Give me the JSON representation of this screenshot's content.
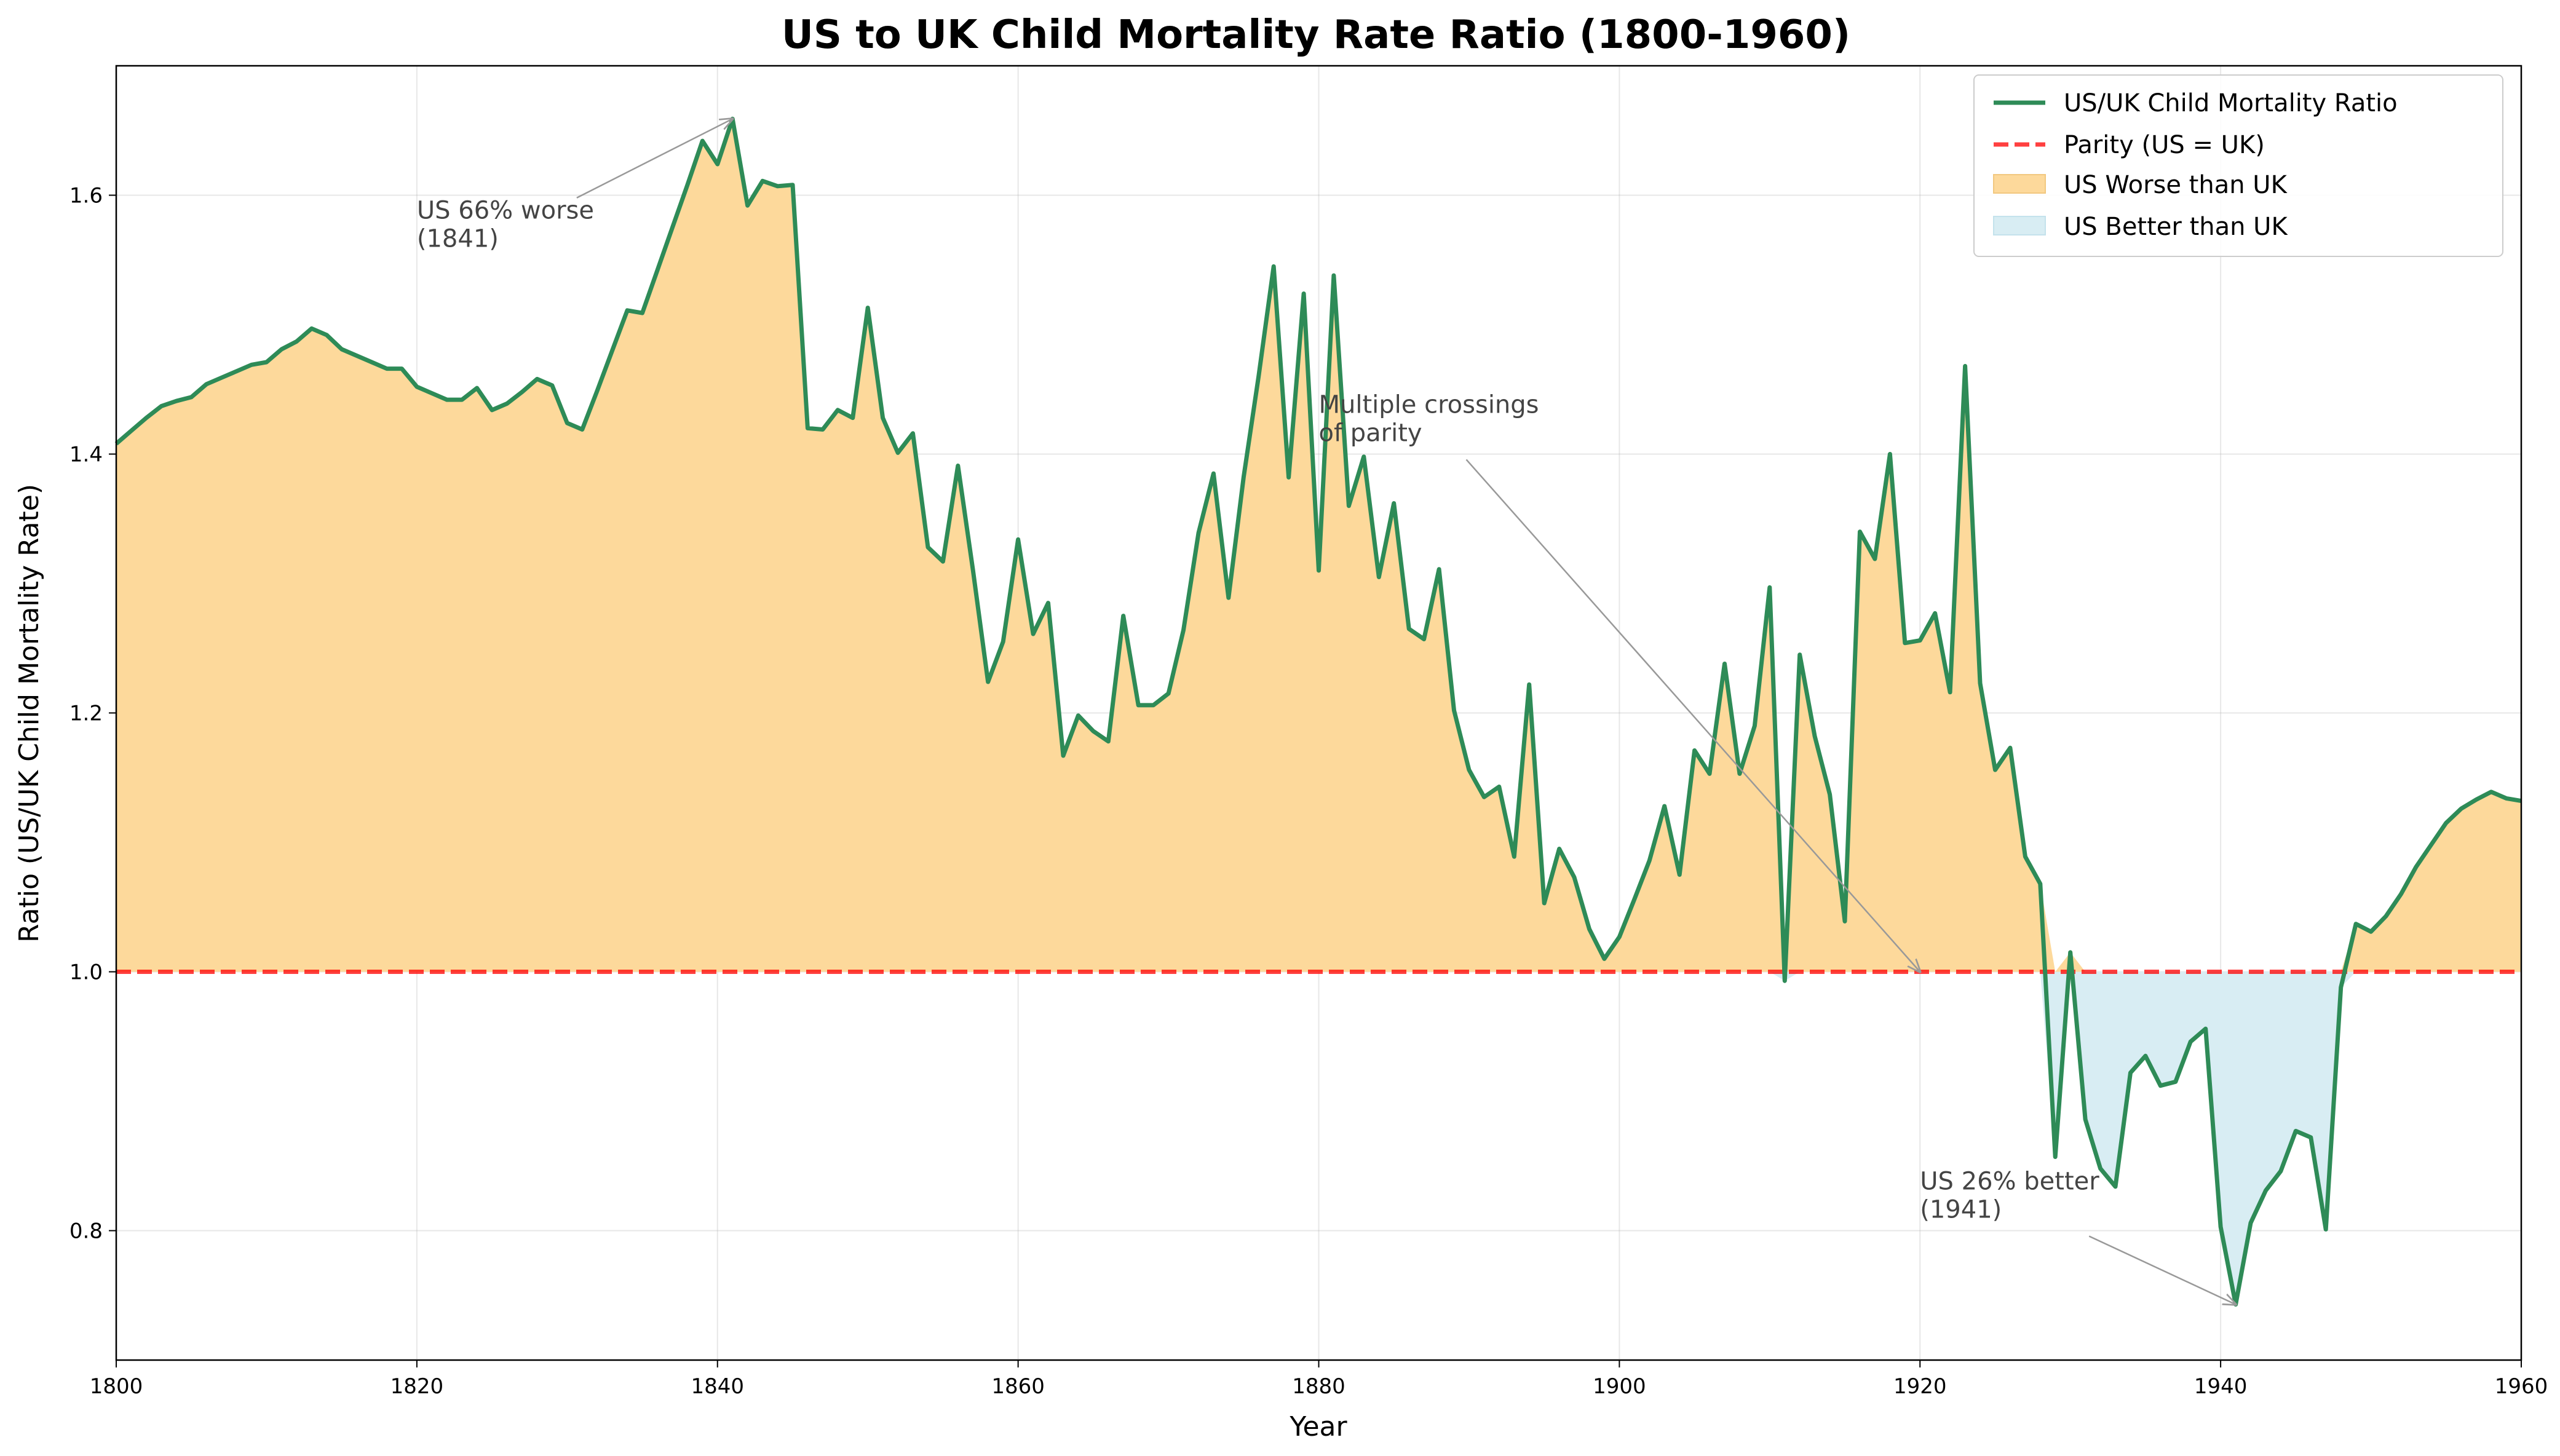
{
  "chart_data": {
    "type": "line",
    "title": "US to UK Child Mortality Rate Ratio (1800-1960)",
    "xlabel": "Year",
    "ylabel": "Ratio (US/UK Child Mortality Rate)",
    "xlim": [
      1800,
      1960
    ],
    "ylim": [
      0.7,
      1.7
    ],
    "xticks": [
      1800,
      1820,
      1840,
      1860,
      1880,
      1900,
      1920,
      1940,
      1960
    ],
    "yticks": [
      0.8,
      1.0,
      1.2,
      1.4,
      1.6
    ],
    "ytick_labels": [
      "0.8",
      "1.0",
      "1.2",
      "1.4",
      "1.6"
    ],
    "grid": true,
    "legend_position": "top-right",
    "series": [
      {
        "name": "US/UK Child Mortality Ratio",
        "color": "#2e8b57",
        "x": [
          1800,
          1801,
          1802,
          1803,
          1804,
          1805,
          1806,
          1807,
          1808,
          1809,
          1810,
          1811,
          1812,
          1813,
          1814,
          1815,
          1816,
          1817,
          1818,
          1819,
          1820,
          1821,
          1822,
          1823,
          1824,
          1825,
          1826,
          1827,
          1828,
          1829,
          1830,
          1831,
          1832,
          1833,
          1834,
          1835,
          1836,
          1837,
          1838,
          1839,
          1840,
          1841,
          1842,
          1843,
          1844,
          1845,
          1846,
          1847,
          1848,
          1849,
          1850,
          1851,
          1852,
          1853,
          1854,
          1855,
          1856,
          1857,
          1858,
          1859,
          1860,
          1861,
          1862,
          1863,
          1864,
          1865,
          1866,
          1867,
          1868,
          1869,
          1870,
          1871,
          1872,
          1873,
          1874,
          1875,
          1876,
          1877,
          1878,
          1879,
          1880,
          1881,
          1882,
          1883,
          1884,
          1885,
          1886,
          1887,
          1888,
          1889,
          1890,
          1891,
          1892,
          1893,
          1894,
          1895,
          1896,
          1897,
          1898,
          1899,
          1900,
          1901,
          1902,
          1903,
          1904,
          1905,
          1906,
          1907,
          1908,
          1909,
          1910,
          1911,
          1912,
          1913,
          1914,
          1915,
          1916,
          1917,
          1918,
          1919,
          1920,
          1921,
          1922,
          1923,
          1924,
          1925,
          1926,
          1927,
          1928,
          1929,
          1930,
          1931,
          1932,
          1933,
          1934,
          1935,
          1936,
          1937,
          1938,
          1939,
          1940,
          1941,
          1942,
          1943,
          1944,
          1945,
          1946,
          1947,
          1948,
          1949,
          1950,
          1951,
          1952,
          1953,
          1954,
          1955,
          1956,
          1957,
          1958,
          1959,
          1960
        ],
        "y": [
          1.408,
          1.418,
          1.428,
          1.437,
          1.441,
          1.444,
          1.454,
          1.459,
          1.464,
          1.469,
          1.471,
          1.481,
          1.487,
          1.497,
          1.492,
          1.481,
          1.476,
          1.471,
          1.466,
          1.466,
          1.452,
          1.447,
          1.442,
          1.442,
          1.451,
          1.434,
          1.439,
          1.448,
          1.458,
          1.453,
          1.424,
          1.419,
          1.449,
          1.48,
          1.511,
          1.509,
          1.542,
          1.575,
          1.608,
          1.642,
          1.624,
          1.659,
          1.592,
          1.611,
          1.607,
          1.608,
          1.42,
          1.419,
          1.434,
          1.428,
          1.513,
          1.428,
          1.401,
          1.416,
          1.328,
          1.317,
          1.391,
          1.31,
          1.224,
          1.255,
          1.334,
          1.261,
          1.285,
          1.167,
          1.198,
          1.186,
          1.178,
          1.275,
          1.206,
          1.206,
          1.215,
          1.264,
          1.339,
          1.385,
          1.289,
          1.382,
          1.46,
          1.545,
          1.382,
          1.524,
          1.31,
          1.538,
          1.36,
          1.398,
          1.305,
          1.362,
          1.265,
          1.257,
          1.311,
          1.202,
          1.156,
          1.135,
          1.143,
          1.089,
          1.222,
          1.053,
          1.095,
          1.073,
          1.033,
          1.01,
          1.027,
          1.056,
          1.086,
          1.128,
          1.075,
          1.171,
          1.153,
          1.238,
          1.153,
          1.19,
          1.297,
          0.993,
          1.245,
          1.182,
          1.137,
          1.039,
          1.34,
          1.319,
          1.4,
          1.254,
          1.256,
          1.277,
          1.216,
          1.468,
          1.223,
          1.156,
          1.173,
          1.089,
          1.068,
          0.857,
          1.015,
          0.886,
          0.848,
          0.834,
          0.922,
          0.935,
          0.912,
          0.915,
          0.946,
          0.956,
          0.803,
          0.743,
          0.806,
          0.831,
          0.846,
          0.877,
          0.872,
          0.801,
          0.988,
          1.037,
          1.031,
          1.043,
          1.06,
          1.081,
          1.098,
          1.115,
          1.126,
          1.133,
          1.139,
          1.134,
          1.132
        ]
      },
      {
        "name": "Parity (US = UK)",
        "value": 1.0,
        "color": "#ff0000",
        "style": "dashed"
      }
    ],
    "fills": [
      {
        "name": "US Worse than UK",
        "color": "#fdd99b",
        "where": "above parity"
      },
      {
        "name": "US Better than UK",
        "color": "#d8edf3",
        "where": "below parity"
      }
    ],
    "annotations": [
      {
        "lines": [
          "US 66% worse",
          "(1841)"
        ],
        "text_at": [
          1820,
          1.56
        ],
        "arrow_to": [
          1841,
          1.659
        ]
      },
      {
        "lines": [
          "Multiple crossings",
          "of parity"
        ],
        "text_at": [
          1880,
          1.41
        ],
        "arrow_to": [
          1920,
          1.0
        ]
      },
      {
        "lines": [
          "US 26% better",
          "(1941)"
        ],
        "text_at": [
          1920,
          0.81
        ],
        "arrow_to": [
          1941,
          0.743
        ]
      }
    ]
  }
}
